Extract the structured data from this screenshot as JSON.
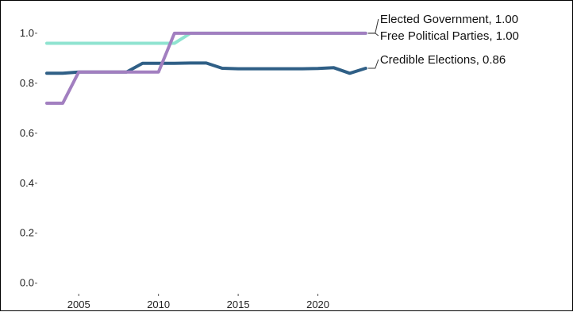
{
  "chart_data": {
    "type": "line",
    "title": "",
    "xlabel": "",
    "ylabel": "",
    "xlim": [
      2002.5,
      2025
    ],
    "ylim": [
      -0.02,
      1.06
    ],
    "grid": false,
    "x_ticks": [
      "2005",
      "2010",
      "2015",
      "2020"
    ],
    "y_ticks": [
      "0.0",
      "0.2",
      "0.4",
      "0.6",
      "0.8",
      "1.0"
    ],
    "series": [
      {
        "name": "Elected Government",
        "label": "Elected Government, 1.00",
        "color": "#8fe3d0",
        "x": [
          2003,
          2004,
          2005,
          2006,
          2007,
          2008,
          2009,
          2010,
          2011,
          2012,
          2013,
          2014,
          2015,
          2016,
          2017,
          2018,
          2019,
          2020,
          2021,
          2022,
          2023
        ],
        "values": [
          0.96,
          0.96,
          0.96,
          0.96,
          0.96,
          0.96,
          0.96,
          0.96,
          0.96,
          1.0,
          1.0,
          1.0,
          1.0,
          1.0,
          1.0,
          1.0,
          1.0,
          1.0,
          1.0,
          1.0,
          1.0
        ]
      },
      {
        "name": "Credible Elections",
        "label": "Credible Elections, 0.86",
        "color": "#2f5f86",
        "x": [
          2003,
          2004,
          2005,
          2006,
          2007,
          2008,
          2009,
          2010,
          2011,
          2012,
          2013,
          2014,
          2015,
          2016,
          2017,
          2018,
          2019,
          2020,
          2021,
          2022,
          2023
        ],
        "values": [
          0.84,
          0.84,
          0.845,
          0.845,
          0.845,
          0.845,
          0.88,
          0.88,
          0.88,
          0.881,
          0.881,
          0.86,
          0.858,
          0.858,
          0.858,
          0.858,
          0.858,
          0.859,
          0.862,
          0.84,
          0.86
        ]
      },
      {
        "name": "Free Political Parties",
        "label": "Free Political Parties, 1.00",
        "color": "#a27fc0",
        "x": [
          2003,
          2004,
          2005,
          2006,
          2007,
          2008,
          2009,
          2010,
          2011,
          2012,
          2013,
          2014,
          2015,
          2016,
          2017,
          2018,
          2019,
          2020,
          2021,
          2022,
          2023
        ],
        "values": [
          0.72,
          0.72,
          0.845,
          0.845,
          0.845,
          0.845,
          0.845,
          0.845,
          1.0,
          1.0,
          1.0,
          1.0,
          1.0,
          1.0,
          1.0,
          1.0,
          1.0,
          1.0,
          1.0,
          1.0,
          1.0
        ]
      }
    ]
  }
}
